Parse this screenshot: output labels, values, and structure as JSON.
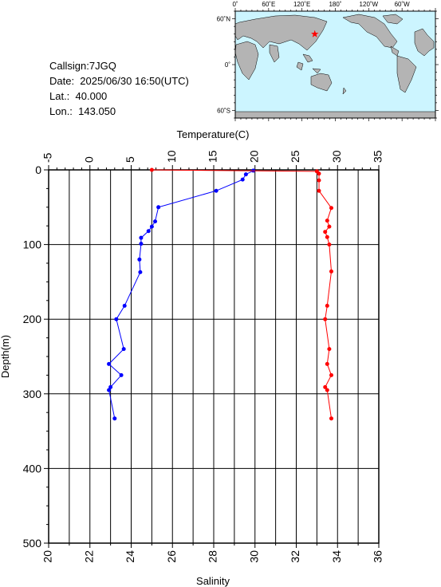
{
  "info": {
    "callsign": "Callsign:7JGQ",
    "date": "Date:  2025/06/30 16:50(UTC)",
    "lat": "Lat.:  40.000",
    "lon": "Lon.:  143.050"
  },
  "map": {
    "top_labels": [
      "0˚",
      "60˚E",
      "120˚E",
      "180˚",
      "120˚W",
      "60˚W"
    ],
    "left_labels": [
      "60˚N",
      "0˚",
      "60˚S"
    ],
    "ocean_color": "#ccf5ff",
    "land_color": "#b4b4b4",
    "marker_color": "#ff0000",
    "marker": "star-icon"
  },
  "chart_data": {
    "type": "line",
    "top_axis": {
      "label": "Temperature(C)",
      "range": [
        -5,
        35
      ],
      "ticks": [
        "-5",
        "0",
        "5",
        "10",
        "15",
        "20",
        "25",
        "30",
        "35"
      ]
    },
    "bottom_axis": {
      "label": "Salinity",
      "range": [
        20,
        36
      ],
      "ticks": [
        "20",
        "22",
        "24",
        "26",
        "28",
        "30",
        "32",
        "34",
        "36"
      ]
    },
    "y_axis": {
      "label": "Depth(m)",
      "range": [
        0,
        500
      ],
      "inverted": true,
      "ticks": [
        "0",
        "100",
        "200",
        "300",
        "400",
        "500"
      ]
    },
    "grid": true,
    "series": [
      {
        "color": "#0000ff",
        "axis": "top",
        "points": [
          [
            19.8,
            1
          ],
          [
            18.9,
            6
          ],
          [
            18.5,
            13
          ],
          [
            15.3,
            28
          ],
          [
            8.3,
            50
          ],
          [
            7.9,
            69
          ],
          [
            7.5,
            76
          ],
          [
            7.1,
            82
          ],
          [
            6.2,
            91
          ],
          [
            6.2,
            99
          ],
          [
            6.0,
            120
          ],
          [
            6.1,
            137
          ],
          [
            4.2,
            182
          ],
          [
            3.2,
            200
          ],
          [
            4.1,
            240
          ],
          [
            2.3,
            260
          ],
          [
            3.8,
            275
          ],
          [
            2.5,
            291
          ],
          [
            2.3,
            295
          ],
          [
            3.0,
            333
          ]
        ]
      },
      {
        "color": "#ff0000",
        "axis": "bottom",
        "points": [
          [
            25.0,
            0
          ],
          [
            33.0,
            2
          ],
          [
            33.1,
            5
          ],
          [
            33.1,
            14
          ],
          [
            33.1,
            28
          ],
          [
            33.7,
            51
          ],
          [
            33.5,
            68
          ],
          [
            33.6,
            76
          ],
          [
            33.4,
            83
          ],
          [
            33.5,
            90
          ],
          [
            33.6,
            100
          ],
          [
            33.7,
            136
          ],
          [
            33.5,
            182
          ],
          [
            33.4,
            200
          ],
          [
            33.6,
            240
          ],
          [
            33.5,
            260
          ],
          [
            33.7,
            275
          ],
          [
            33.4,
            291
          ],
          [
            33.5,
            295
          ],
          [
            33.7,
            333
          ]
        ]
      }
    ]
  }
}
